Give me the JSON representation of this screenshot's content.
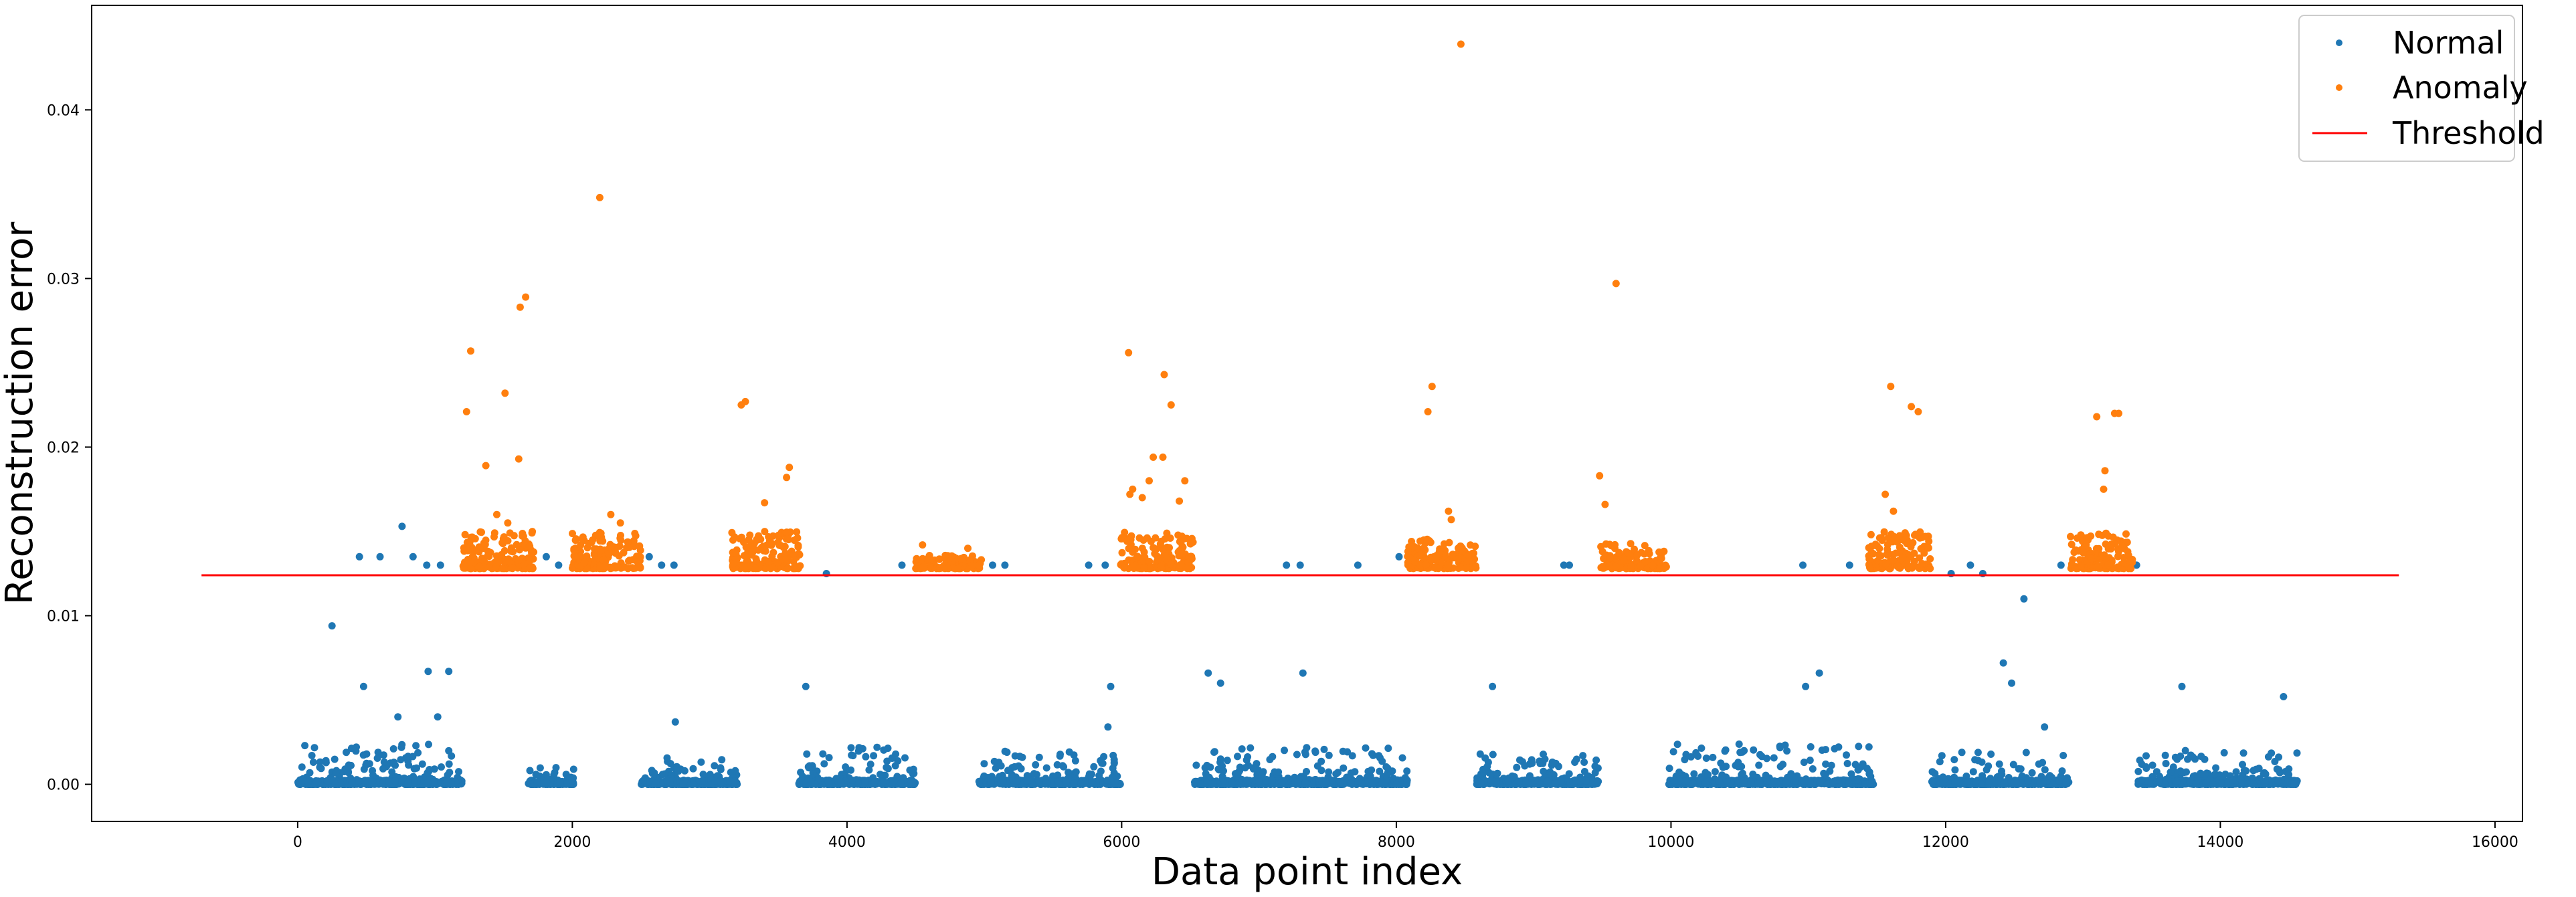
{
  "chart_data": {
    "type": "scatter",
    "title": "",
    "xlabel": "Data point index",
    "ylabel": "Reconstruction error",
    "xlim": [
      -1500,
      16200
    ],
    "ylim": [
      -0.0022,
      0.0462
    ],
    "xticks": [
      0,
      2000,
      4000,
      6000,
      8000,
      10000,
      12000,
      14000,
      16000
    ],
    "xtick_labels": [
      "0",
      "2000",
      "4000",
      "6000",
      "8000",
      "10000",
      "12000",
      "14000",
      "16000"
    ],
    "yticks": [
      0.0,
      0.01,
      0.02,
      0.03,
      0.04
    ],
    "ytick_labels": [
      "0.00",
      "0.01",
      "0.02",
      "0.03",
      "0.04"
    ],
    "grid": false,
    "legend_position": "top-right",
    "legend": [
      "Normal",
      "Anomaly",
      "Threshold"
    ],
    "colors": {
      "normal": "#1f77b4",
      "anomaly": "#ff7f0e",
      "threshold": "#ff0000"
    },
    "threshold": {
      "name": "Threshold",
      "y": 0.0124,
      "x_start": -700,
      "x_end": 15300
    },
    "series": [
      {
        "name": "Normal",
        "clusters": [
          {
            "x_range": [
              0,
              1200
            ],
            "y_max": 0.0024,
            "count": 260
          },
          {
            "x_range": [
              1680,
              2020
            ],
            "y_max": 0.0012,
            "count": 60
          },
          {
            "x_range": [
              2500,
              3200
            ],
            "y_max": 0.0016,
            "count": 150
          },
          {
            "x_range": [
              3650,
              4500
            ],
            "y_max": 0.0022,
            "count": 170
          },
          {
            "x_range": [
              4960,
              5990
            ],
            "y_max": 0.002,
            "count": 200
          },
          {
            "x_range": [
              6530,
              8080
            ],
            "y_max": 0.0022,
            "count": 300
          },
          {
            "x_range": [
              8580,
              9480
            ],
            "y_max": 0.0018,
            "count": 180
          },
          {
            "x_range": [
              9980,
              11480
            ],
            "y_max": 0.0024,
            "count": 290
          },
          {
            "x_range": [
              11900,
              12900
            ],
            "y_max": 0.002,
            "count": 200
          },
          {
            "x_range": [
              13400,
              14560
            ],
            "y_max": 0.002,
            "count": 220
          }
        ],
        "outliers": [
          [
            250,
            0.0094
          ],
          [
            480,
            0.0058
          ],
          [
            730,
            0.004
          ],
          [
            950,
            0.0067
          ],
          [
            1100,
            0.0067
          ],
          [
            1020,
            0.004
          ],
          [
            450,
            0.0135
          ],
          [
            600,
            0.0135
          ],
          [
            760,
            0.0153
          ],
          [
            840,
            0.0135
          ],
          [
            940,
            0.013
          ],
          [
            1040,
            0.013
          ],
          [
            1810,
            0.0135
          ],
          [
            1900,
            0.013
          ],
          [
            2560,
            0.0135
          ],
          [
            2650,
            0.013
          ],
          [
            2740,
            0.013
          ],
          [
            2750,
            0.0037
          ],
          [
            3700,
            0.0058
          ],
          [
            3850,
            0.0125
          ],
          [
            4400,
            0.013
          ],
          [
            5150,
            0.013
          ],
          [
            5060,
            0.013
          ],
          [
            5760,
            0.013
          ],
          [
            5880,
            0.013
          ],
          [
            5920,
            0.0058
          ],
          [
            5900,
            0.0034
          ],
          [
            6630,
            0.0066
          ],
          [
            6720,
            0.006
          ],
          [
            7200,
            0.013
          ],
          [
            7300,
            0.013
          ],
          [
            7320,
            0.0066
          ],
          [
            7720,
            0.013
          ],
          [
            8020,
            0.0135
          ],
          [
            8530,
            0.013
          ],
          [
            8700,
            0.0058
          ],
          [
            9220,
            0.013
          ],
          [
            9260,
            0.013
          ],
          [
            10960,
            0.013
          ],
          [
            10980,
            0.0058
          ],
          [
            11080,
            0.0066
          ],
          [
            11300,
            0.013
          ],
          [
            12040,
            0.0125
          ],
          [
            12180,
            0.013
          ],
          [
            12270,
            0.0125
          ],
          [
            12420,
            0.0072
          ],
          [
            12480,
            0.006
          ],
          [
            12570,
            0.011
          ],
          [
            12720,
            0.0034
          ],
          [
            12840,
            0.013
          ],
          [
            13390,
            0.013
          ],
          [
            13720,
            0.0058
          ],
          [
            14460,
            0.0052
          ]
        ]
      },
      {
        "name": "Anomaly",
        "clusters": [
          {
            "x_range": [
              1200,
              1720
            ],
            "y_min": 0.0128,
            "y_max": 0.015,
            "count": 150
          },
          {
            "x_range": [
              2000,
              2500
            ],
            "y_min": 0.0128,
            "y_max": 0.015,
            "count": 150
          },
          {
            "x_range": [
              3160,
              3660
            ],
            "y_min": 0.0128,
            "y_max": 0.015,
            "count": 150
          },
          {
            "x_range": [
              4500,
              4980
            ],
            "y_min": 0.0128,
            "y_max": 0.0136,
            "count": 110
          },
          {
            "x_range": [
              5990,
              6520
            ],
            "y_min": 0.0128,
            "y_max": 0.015,
            "count": 170
          },
          {
            "x_range": [
              8080,
              8580
            ],
            "y_min": 0.0128,
            "y_max": 0.0146,
            "count": 140
          },
          {
            "x_range": [
              9480,
              9970
            ],
            "y_min": 0.0128,
            "y_max": 0.0143,
            "count": 130
          },
          {
            "x_range": [
              11440,
              11890
            ],
            "y_min": 0.0128,
            "y_max": 0.015,
            "count": 140
          },
          {
            "x_range": [
              12900,
              13360
            ],
            "y_min": 0.0128,
            "y_max": 0.015,
            "count": 140
          }
        ],
        "outliers": [
          [
            1230,
            0.0221
          ],
          [
            1260,
            0.0257
          ],
          [
            1370,
            0.0189
          ],
          [
            1510,
            0.0232
          ],
          [
            1610,
            0.0193
          ],
          [
            1620,
            0.0283
          ],
          [
            1660,
            0.0289
          ],
          [
            1450,
            0.016
          ],
          [
            1530,
            0.0155
          ],
          [
            2200,
            0.0348
          ],
          [
            2280,
            0.016
          ],
          [
            2350,
            0.0155
          ],
          [
            3230,
            0.0225
          ],
          [
            3260,
            0.0227
          ],
          [
            3400,
            0.0167
          ],
          [
            3560,
            0.0182
          ],
          [
            3580,
            0.0188
          ],
          [
            4550,
            0.0142
          ],
          [
            4880,
            0.014
          ],
          [
            6050,
            0.0256
          ],
          [
            6060,
            0.0172
          ],
          [
            6080,
            0.0175
          ],
          [
            6150,
            0.017
          ],
          [
            6200,
            0.018
          ],
          [
            6230,
            0.0194
          ],
          [
            6300,
            0.0194
          ],
          [
            6310,
            0.0243
          ],
          [
            6360,
            0.0225
          ],
          [
            6420,
            0.0168
          ],
          [
            6460,
            0.018
          ],
          [
            8230,
            0.0221
          ],
          [
            8260,
            0.0236
          ],
          [
            8380,
            0.0162
          ],
          [
            8470,
            0.0439
          ],
          [
            8400,
            0.0157
          ],
          [
            9480,
            0.0183
          ],
          [
            9520,
            0.0166
          ],
          [
            9600,
            0.0297
          ],
          [
            11600,
            0.0236
          ],
          [
            11560,
            0.0172
          ],
          [
            11620,
            0.0162
          ],
          [
            11750,
            0.0224
          ],
          [
            11800,
            0.0221
          ],
          [
            13100,
            0.0218
          ],
          [
            13150,
            0.0175
          ],
          [
            13160,
            0.0186
          ],
          [
            13230,
            0.022
          ],
          [
            13260,
            0.022
          ]
        ]
      }
    ]
  }
}
